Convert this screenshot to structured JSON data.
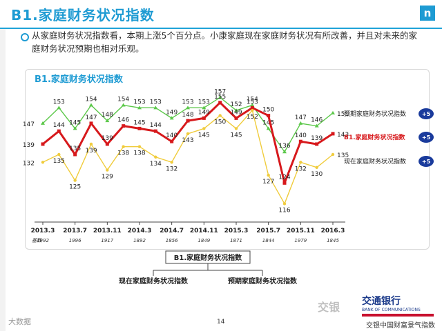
{
  "header": {
    "title": "B1.家庭财务状况指数",
    "logo_letter": "n"
  },
  "intro": {
    "text": "从家庭财务状况指数看，本期上涨5个百分点。小康家庭现在家庭财务状况有所改善，并且对未来的家庭财务状况预期也相对乐观。"
  },
  "chart_title": "B1.家庭财务状况指数",
  "chart_data": {
    "type": "line",
    "x": [
      "2013.3",
      "2013.5",
      "2013.7",
      "2013.9",
      "2013.11",
      "2014.1",
      "2014.3",
      "2014.5",
      "2014.7",
      "2014.9",
      "2014.11",
      "2015.1",
      "2015.3",
      "2015.5",
      "2015.7",
      "2015.9",
      "2015.11",
      "2016.1",
      "2016.3"
    ],
    "x_tick_labels": [
      "2013.3",
      "2013.7",
      "2013.11",
      "2014.3",
      "2014.7",
      "2014.11",
      "2015.3",
      "2015.7",
      "2015.11",
      "2016.3"
    ],
    "sample_label": "基数",
    "sample_sizes": [
      "1992",
      "1996",
      "1917",
      "1892",
      "1856",
      "1849",
      "1871",
      "1844",
      "1979",
      "1845"
    ],
    "ylim": [
      110,
      160
    ],
    "series": [
      {
        "name": "预期家庭财务状况指数",
        "color": "#5cc84a",
        "values": [
          147,
          153,
          145,
          154,
          148,
          154,
          153,
          153,
          149,
          153,
          153,
          157,
          152,
          154,
          145,
          136,
          147,
          146,
          151
        ],
        "change": "+5"
      },
      {
        "name": "B1.家庭财务状况指数",
        "color": "#d7191c",
        "values": [
          139,
          144,
          135,
          147,
          139,
          146,
          145,
          144,
          140,
          148,
          149,
          155,
          149,
          153,
          150,
          124,
          140,
          139,
          143
        ],
        "change": "+5"
      },
      {
        "name": "现在家庭财务状况指数",
        "color": "#f0cc3c",
        "values": [
          132,
          135,
          125,
          139,
          129,
          138,
          138,
          134,
          132,
          143,
          145,
          150,
          145,
          152,
          127,
          116,
          132,
          130,
          135
        ],
        "change": "+5"
      }
    ]
  },
  "diagram": {
    "root": "B1.家庭财务状况指数",
    "left": "现在家庭财务状况指数",
    "right": "预期家庭财务状况指数"
  },
  "footer": {
    "page_number": "14",
    "left_text": "大数据",
    "bank_name": "交通银行",
    "bank_en": "BANK OF COMMUNICATIONS",
    "bank_sub": "交银中国财富景气指数",
    "watermark": "交银"
  }
}
